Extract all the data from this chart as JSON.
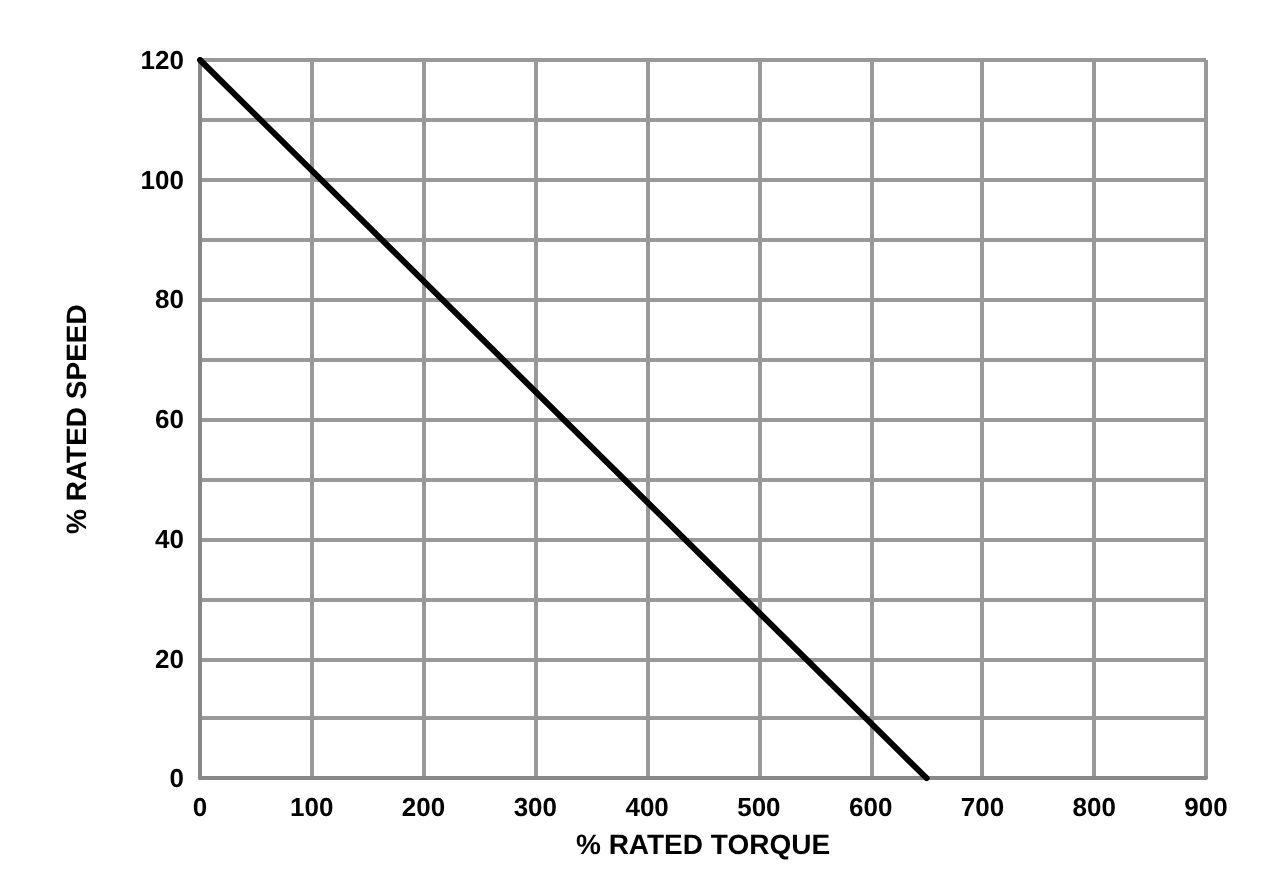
{
  "chart_data": {
    "type": "line",
    "xlabel": "% RATED TORQUE",
    "ylabel": "% RATED SPEED",
    "x": [
      0,
      650
    ],
    "series": [
      {
        "color": "#000000",
        "values": [
          120,
          0
        ]
      }
    ],
    "xlim": [
      0,
      900
    ],
    "xticks": [
      0,
      100,
      200,
      300,
      400,
      500,
      600,
      700,
      800,
      900
    ],
    "ylim": [
      0,
      120
    ],
    "yticks": [
      0,
      20,
      40,
      60,
      80,
      100,
      120
    ],
    "grid": true,
    "marker": "none",
    "line_style": "solid"
  }
}
